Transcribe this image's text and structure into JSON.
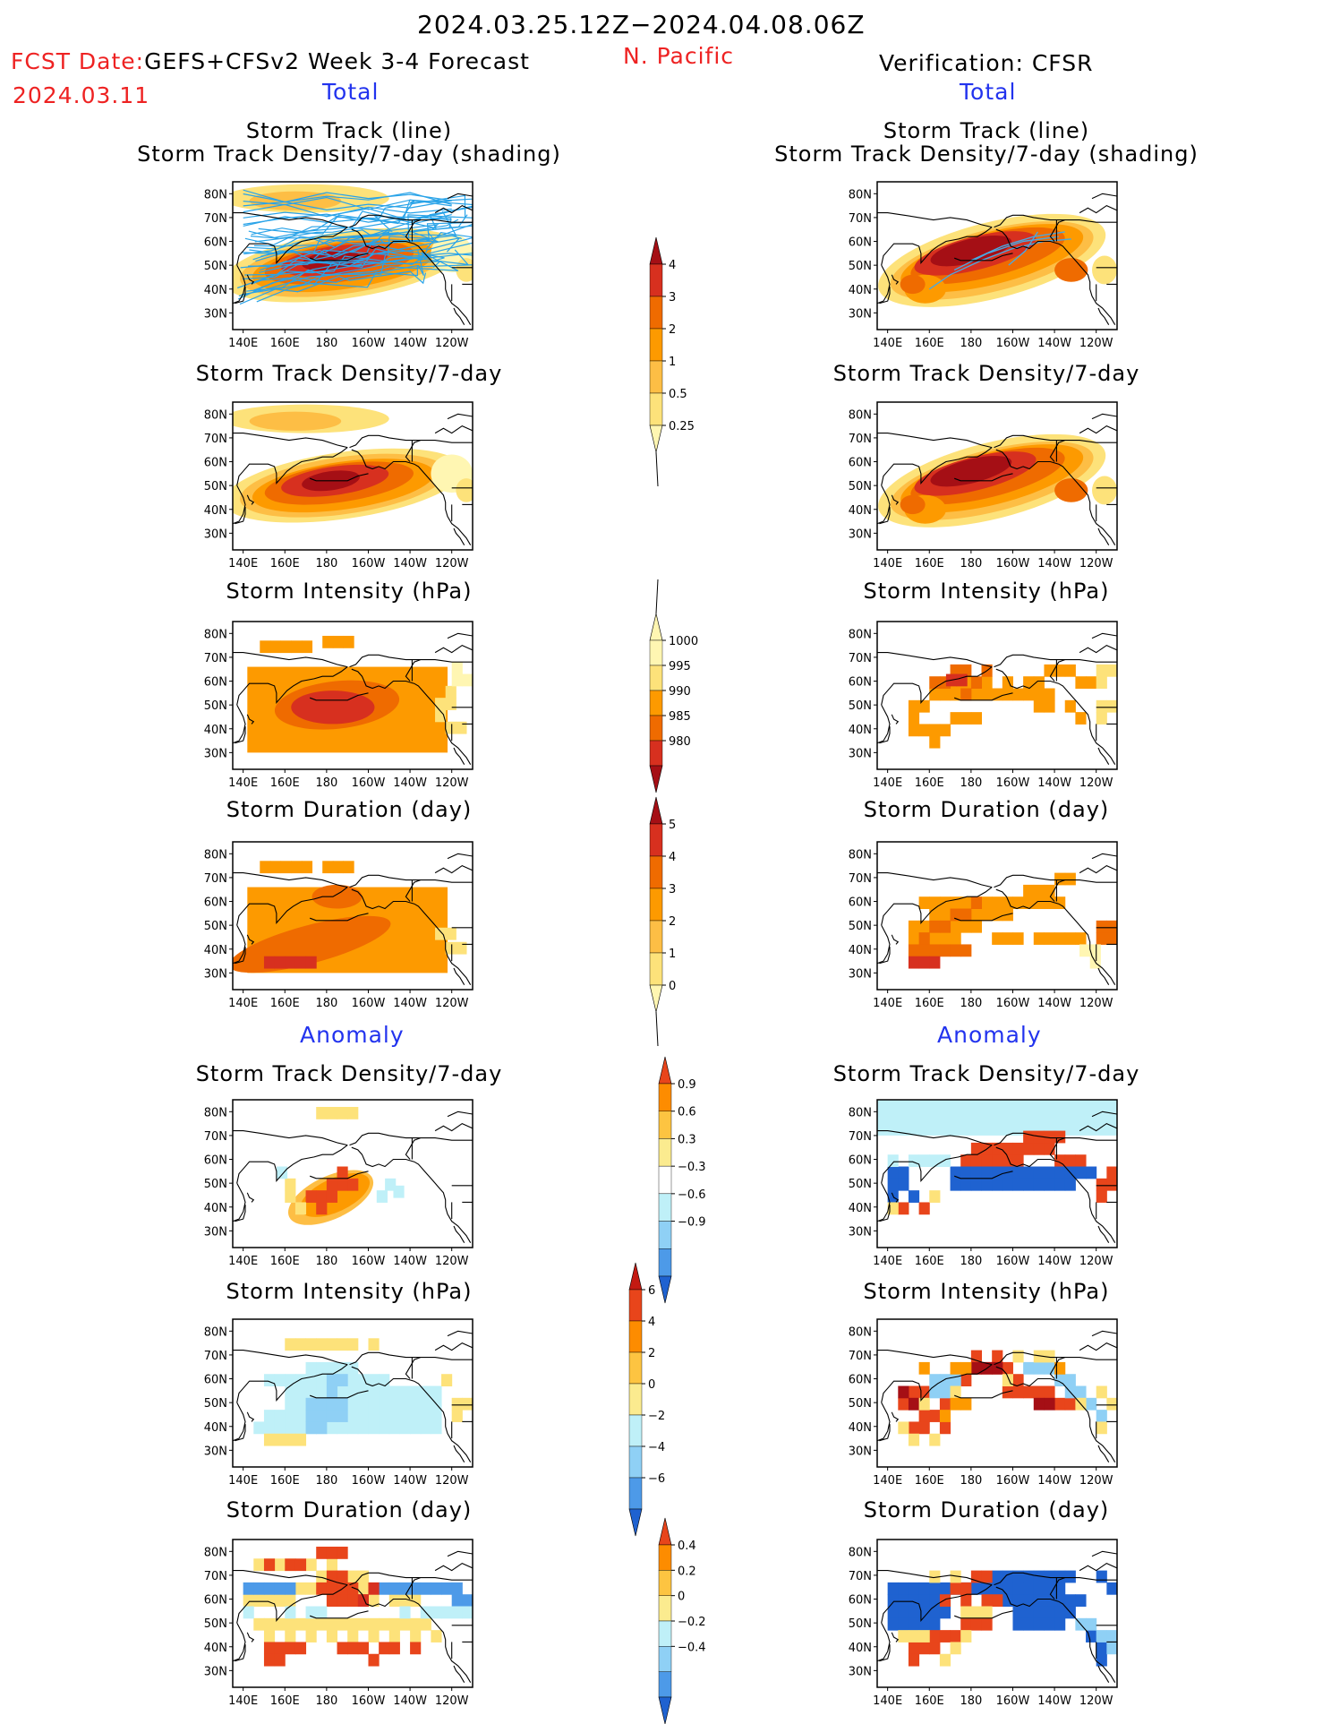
{
  "header": {
    "date_range": "2024.03.25.12Z−2024.04.08.06Z",
    "fcst_date_label": "FCST Date:",
    "fcst_model": "GEFS+CFSv2 Week 3-4 Forecast",
    "fcst_date": "2024.03.11",
    "region": "N. Pacific",
    "verification": "Verification: CFSR",
    "total_label": "Total",
    "anomaly_label": "Anomaly"
  },
  "panels": {
    "track": [
      "Storm Track (line)",
      "Storm Track Density/7-day (shading)"
    ],
    "density": "Storm Track Density/7-day",
    "intensity": "Storm Intensity (hPa)",
    "duration": "Storm Duration (day)"
  },
  "axes": {
    "lat_ticks": [
      "80N",
      "70N",
      "60N",
      "50N",
      "40N",
      "30N"
    ],
    "lon_ticks": [
      "140E",
      "160E",
      "180",
      "160W",
      "140W",
      "120W"
    ]
  },
  "colorbars": {
    "density": {
      "labels": [
        "4",
        "3",
        "2",
        "1",
        "0.5",
        "0.25"
      ],
      "colors": [
        "#a50f15",
        "#d7301f",
        "#ef6b00",
        "#fd9a00",
        "#fdbe45",
        "#fde27a",
        "#fff6b2"
      ]
    },
    "intensity": {
      "labels": [
        "1000",
        "995",
        "990",
        "985",
        "980"
      ],
      "colors": [
        "#fff6b2",
        "#fde27a",
        "#fd9a00",
        "#ef6b00",
        "#d7301f",
        "#a50f15"
      ]
    },
    "duration": {
      "labels": [
        "5",
        "4",
        "3",
        "2",
        "1",
        "0"
      ],
      "colors": [
        "#a50f15",
        "#d7301f",
        "#ef6b00",
        "#fd9a00",
        "#fdbe45",
        "#fde27a",
        "#fff6b2"
      ]
    },
    "anom_density": {
      "labels": [
        "0.9",
        "0.6",
        "0.3",
        "−0.3",
        "−0.6",
        "−0.9"
      ],
      "colors": [
        "#e8451b",
        "#fd8c00",
        "#fdc441",
        "#fbeb8f",
        "#ffffff",
        "#bff0f8",
        "#8fd0f5",
        "#4d9ae8",
        "#1f62d0"
      ]
    },
    "anom_intensity": {
      "labels": [
        "6",
        "4",
        "2",
        "0",
        "−2",
        "−4",
        "−6"
      ],
      "colors": [
        "#c41a12",
        "#e8451b",
        "#fd8c00",
        "#fdc441",
        "#fbeb8f",
        "#bff0f8",
        "#8fd0f5",
        "#4d9ae8",
        "#1f62d0"
      ]
    },
    "anom_duration": {
      "labels": [
        "0.4",
        "0.2",
        "0",
        "−0.2",
        "−0.4"
      ],
      "colors": [
        "#e8451b",
        "#fd8c00",
        "#fdc441",
        "#fbeb8f",
        "#bff0f8",
        "#8fd0f5",
        "#4d9ae8",
        "#1f62d0"
      ]
    }
  }
}
